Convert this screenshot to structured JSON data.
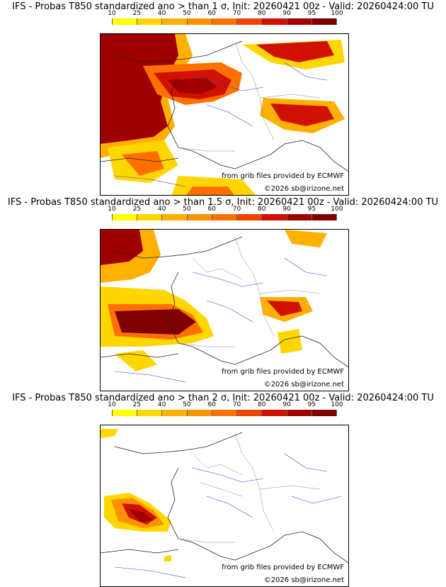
{
  "legend": {
    "labels": [
      "10",
      "25",
      "40",
      "50",
      "60",
      "70",
      "80",
      "90",
      "95",
      "100"
    ],
    "colors": [
      "#ffff00",
      "#ffd700",
      "#ffb000",
      "#ff9000",
      "#ff7000",
      "#ee4400",
      "#d01000",
      "#a00000",
      "#800000"
    ]
  },
  "panels": [
    {
      "title": "IFS - Probas T850  standardized ano > than 1 σ, Init: 20260421 00z - Valid: 20260424:00 TU",
      "source_credit": "from grib files provided by ECMWF",
      "copyright": "©2026 sb@irizone.net",
      "intensity": "high"
    },
    {
      "title": "IFS - Probas T850  standardized ano > than 1.5 σ, Init: 20260421 00z - Valid: 20260424:00 TU",
      "source_credit": "from grib files provided by ECMWF",
      "copyright": "©2026 sb@irizone.net",
      "intensity": "medium"
    },
    {
      "title": "IFS - Probas T850  standardized ano > than 2 σ, Init: 20260421 00z - Valid: 20260424:00 TU",
      "source_credit": "from grib files provided by ECMWF",
      "copyright": "©2026 sb@irizone.net",
      "intensity": "low"
    }
  ]
}
